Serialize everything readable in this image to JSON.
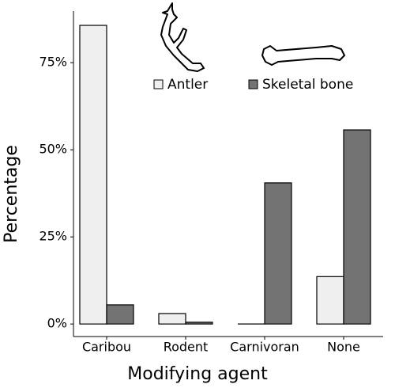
{
  "chart_data": {
    "type": "bar",
    "x_label": "Modifying agent",
    "y_label": "Percentage",
    "categories": [
      "Caribou",
      "Rodent",
      "Carnivoran",
      "None"
    ],
    "series": [
      {
        "name": "Antler",
        "color": "#efefef",
        "values": [
          85.7,
          3.0,
          0,
          13.6
        ]
      },
      {
        "name": "Skeletal bone",
        "color": "#737373",
        "values": [
          5.5,
          0.5,
          40.5,
          55.7
        ]
      }
    ],
    "ylim": [
      -3.6,
      89.8
    ],
    "yticks": [
      {
        "value": 0,
        "label": "0%"
      },
      {
        "value": 25,
        "label": "25%"
      },
      {
        "value": 50,
        "label": "50%"
      },
      {
        "value": 75,
        "label": "75%"
      }
    ],
    "grid": false
  }
}
